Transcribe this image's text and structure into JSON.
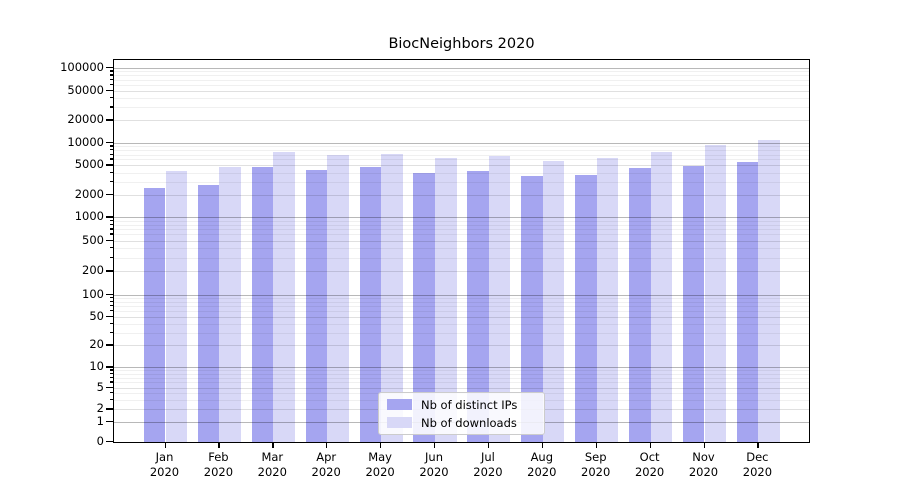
{
  "chart_data": {
    "type": "bar",
    "title": "BiocNeighbors 2020",
    "categories": [
      "Jan",
      "Feb",
      "Mar",
      "Apr",
      "May",
      "Jun",
      "Jul",
      "Aug",
      "Sep",
      "Oct",
      "Nov",
      "Dec"
    ],
    "year_label": "2020",
    "series": [
      {
        "name": "Nb of distinct IPs",
        "color": "#a5a5f0",
        "values": [
          2500,
          2700,
          4700,
          4350,
          4800,
          4000,
          4250,
          3600,
          3700,
          4600,
          4850,
          5600
        ]
      },
      {
        "name": "Nb of downloads",
        "color": "#d8d8f7",
        "values": [
          4200,
          4700,
          7600,
          7000,
          7100,
          6200,
          6700,
          5800,
          6300,
          7500,
          9300,
          11000
        ]
      }
    ],
    "y_ticks": [
      100000,
      50000,
      20000,
      10000,
      5000,
      2000,
      1000,
      500,
      200,
      100,
      50,
      20,
      10,
      5,
      2,
      1,
      0
    ],
    "y_scale": "symlog",
    "ylim": [
      0,
      130000
    ],
    "grid": true,
    "legend_position": "lower center"
  }
}
